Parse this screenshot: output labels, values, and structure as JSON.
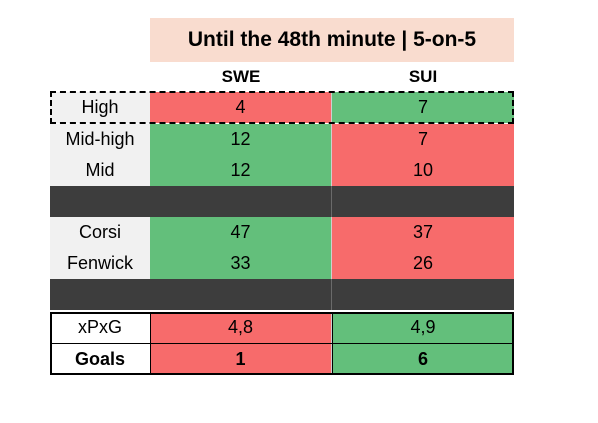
{
  "title": "Until the 48th minute | 5-on-5",
  "columns": [
    "SWE",
    "SUI"
  ],
  "colors": {
    "red": "#f76b6b",
    "green": "#63bf7b",
    "dark": "#3d3d3d",
    "title_bg": "#f9dccf"
  },
  "rows": {
    "high": {
      "label": "High",
      "swe": "4",
      "sui": "7"
    },
    "mid_high": {
      "label": "Mid-high",
      "swe": "12",
      "sui": "7"
    },
    "mid": {
      "label": "Mid",
      "swe": "12",
      "sui": "10"
    },
    "corsi": {
      "label": "Corsi",
      "swe": "47",
      "sui": "37"
    },
    "fenwick": {
      "label": "Fenwick",
      "swe": "33",
      "sui": "26"
    },
    "xpxg": {
      "label": "xPxG",
      "swe": "4,8",
      "sui": "4,9"
    },
    "goals": {
      "label": "Goals",
      "swe": "1",
      "sui": "6"
    }
  }
}
